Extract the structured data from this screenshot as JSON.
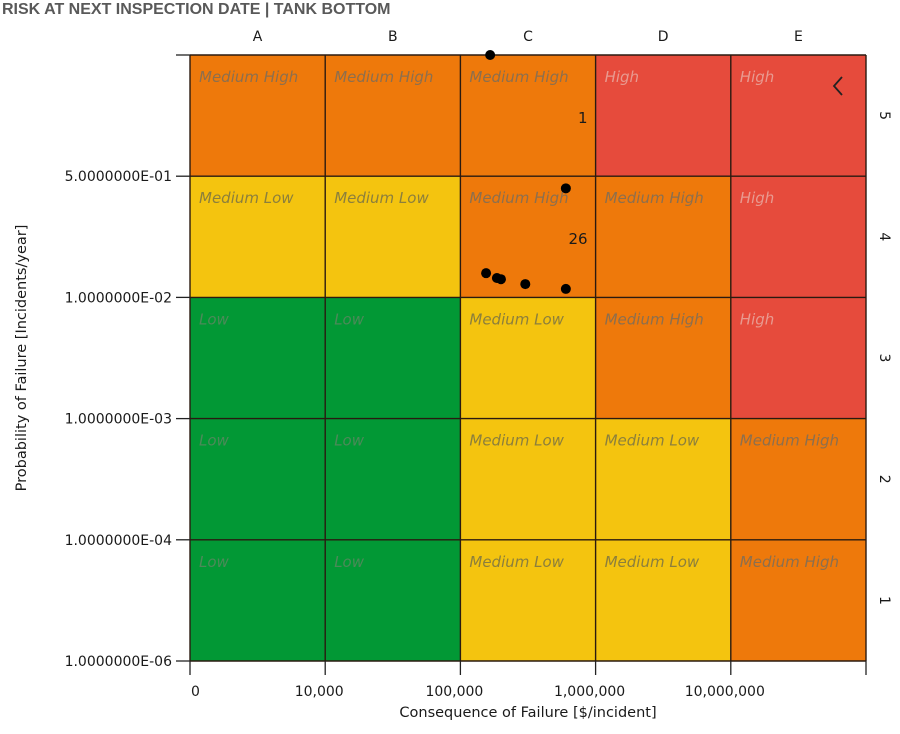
{
  "title": "RISK AT NEXT INSPECTION DATE | TANK BOTTOM",
  "chart_data": {
    "type": "heatmap",
    "title": "RISK AT NEXT INSPECTION DATE | TANK BOTTOM",
    "xlabel": "Consequence of Failure [$/incident]",
    "ylabel": "Probability of Failure [Incidents/year]",
    "x_scale": "log",
    "y_scale": "log",
    "x_tick_labels": [
      "0",
      "10,000",
      "100,000",
      "1,000,000",
      "10,000,000"
    ],
    "x_tick_values": [
      1000,
      10000,
      100000,
      1000000,
      10000000
    ],
    "x_range": [
      1000,
      100000000
    ],
    "y_tick_labels": [
      "1.0000000E-06",
      "1.0000000E-04",
      "1.0000000E-03",
      "1.0000000E-02",
      "5.0000000E-01"
    ],
    "y_bands": [
      "1.0000000E-06",
      "1.0000000E-04",
      "1.0000000E-03",
      "1.0000000E-02",
      "5.0000000E-01",
      ""
    ],
    "columns": [
      "A",
      "B",
      "C",
      "D",
      "E"
    ],
    "rows": [
      "1",
      "2",
      "3",
      "4",
      "5"
    ],
    "cells": [
      [
        "Low",
        "Low",
        "Medium Low",
        "Medium Low",
        "Medium High"
      ],
      [
        "Low",
        "Low",
        "Medium Low",
        "Medium Low",
        "Medium High"
      ],
      [
        "Low",
        "Low",
        "Medium Low",
        "Medium High",
        "High"
      ],
      [
        "Medium Low",
        "Medium Low",
        "Medium High",
        "Medium High",
        "High"
      ],
      [
        "Medium High",
        "Medium High",
        "Medium High",
        "High",
        "High"
      ]
    ],
    "category_colors": {
      "Low": "#029835",
      "Medium Low": "#f4c40f",
      "Medium High": "#ee790b",
      "High": "#e64b3c"
    },
    "label_colors": {
      "Low": "#4c8a59",
      "Medium Low": "#8c7f3c",
      "Medium High": "#8c6f4e",
      "High": "#e89a90"
    },
    "cell_counts": [
      {
        "row": "5",
        "column": "C",
        "count": 1
      },
      {
        "row": "4",
        "column": "C",
        "count": 26
      }
    ],
    "points": [
      {
        "column": "C",
        "row": "5",
        "fx": 0.22,
        "fy": 1.0
      },
      {
        "column": "C",
        "row": "4",
        "fx": 0.78,
        "fy": 0.9
      },
      {
        "column": "C",
        "row": "4",
        "fx": 0.19,
        "fy": 0.2
      },
      {
        "column": "C",
        "row": "4",
        "fx": 0.27,
        "fy": 0.16
      },
      {
        "column": "C",
        "row": "4",
        "fx": 0.3,
        "fy": 0.15
      },
      {
        "column": "C",
        "row": "4",
        "fx": 0.48,
        "fy": 0.11
      },
      {
        "column": "C",
        "row": "4",
        "fx": 0.78,
        "fy": 0.07
      }
    ],
    "grid": true,
    "legend": "none"
  },
  "collapse_icon": "chevron-left-icon"
}
